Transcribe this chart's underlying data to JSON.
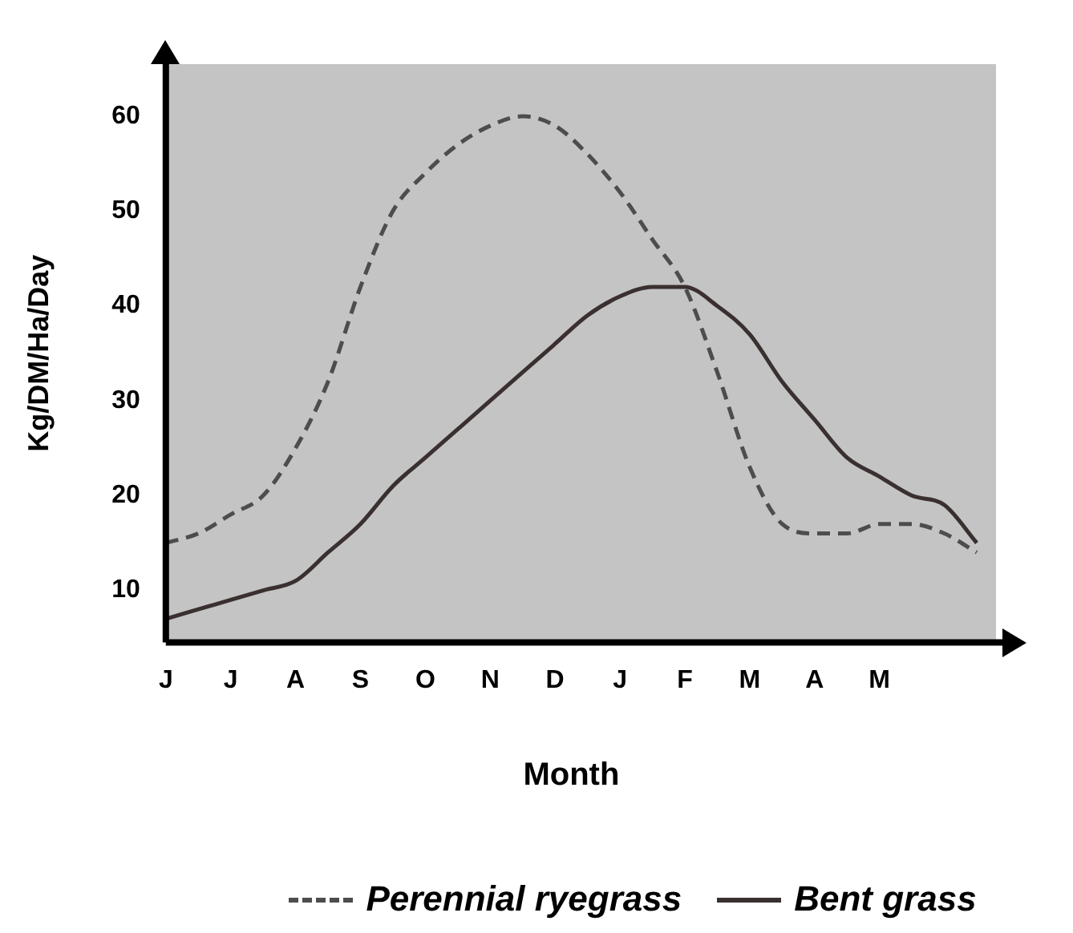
{
  "chart_data": {
    "type": "line",
    "xlabel": "Month",
    "ylabel": "Kg/DM/Ha/Day",
    "categories": [
      "J",
      null,
      "J",
      null,
      "A",
      null,
      "S",
      null,
      "O",
      null,
      "N",
      null,
      "D",
      null,
      "J",
      null,
      "F",
      null,
      "M",
      null,
      "A",
      null,
      "M",
      null,
      null,
      null
    ],
    "ylim": [
      4.5,
      65.5
    ],
    "yticks": [
      10,
      20,
      30,
      40,
      50,
      60
    ],
    "grid": false,
    "legend": "bottom",
    "marker": "none",
    "series": [
      {
        "name": "Perennial ryegrass",
        "color": "#4d4d4d",
        "line_style": "dashed",
        "values": [
          15,
          16,
          18,
          20,
          25,
          32,
          42,
          50,
          54,
          57,
          59,
          60,
          59,
          56,
          52,
          47,
          42,
          33,
          23,
          17,
          16,
          16,
          17,
          17,
          16,
          14
        ]
      },
      {
        "name": "Bent grass",
        "color": "#3a3030",
        "line_style": "solid",
        "values": [
          7,
          8,
          9,
          10,
          11,
          14,
          17,
          21,
          24,
          27,
          30,
          33,
          36,
          39,
          41,
          42,
          42,
          40,
          37,
          32,
          28,
          24,
          22,
          20,
          19,
          15
        ]
      }
    ]
  }
}
